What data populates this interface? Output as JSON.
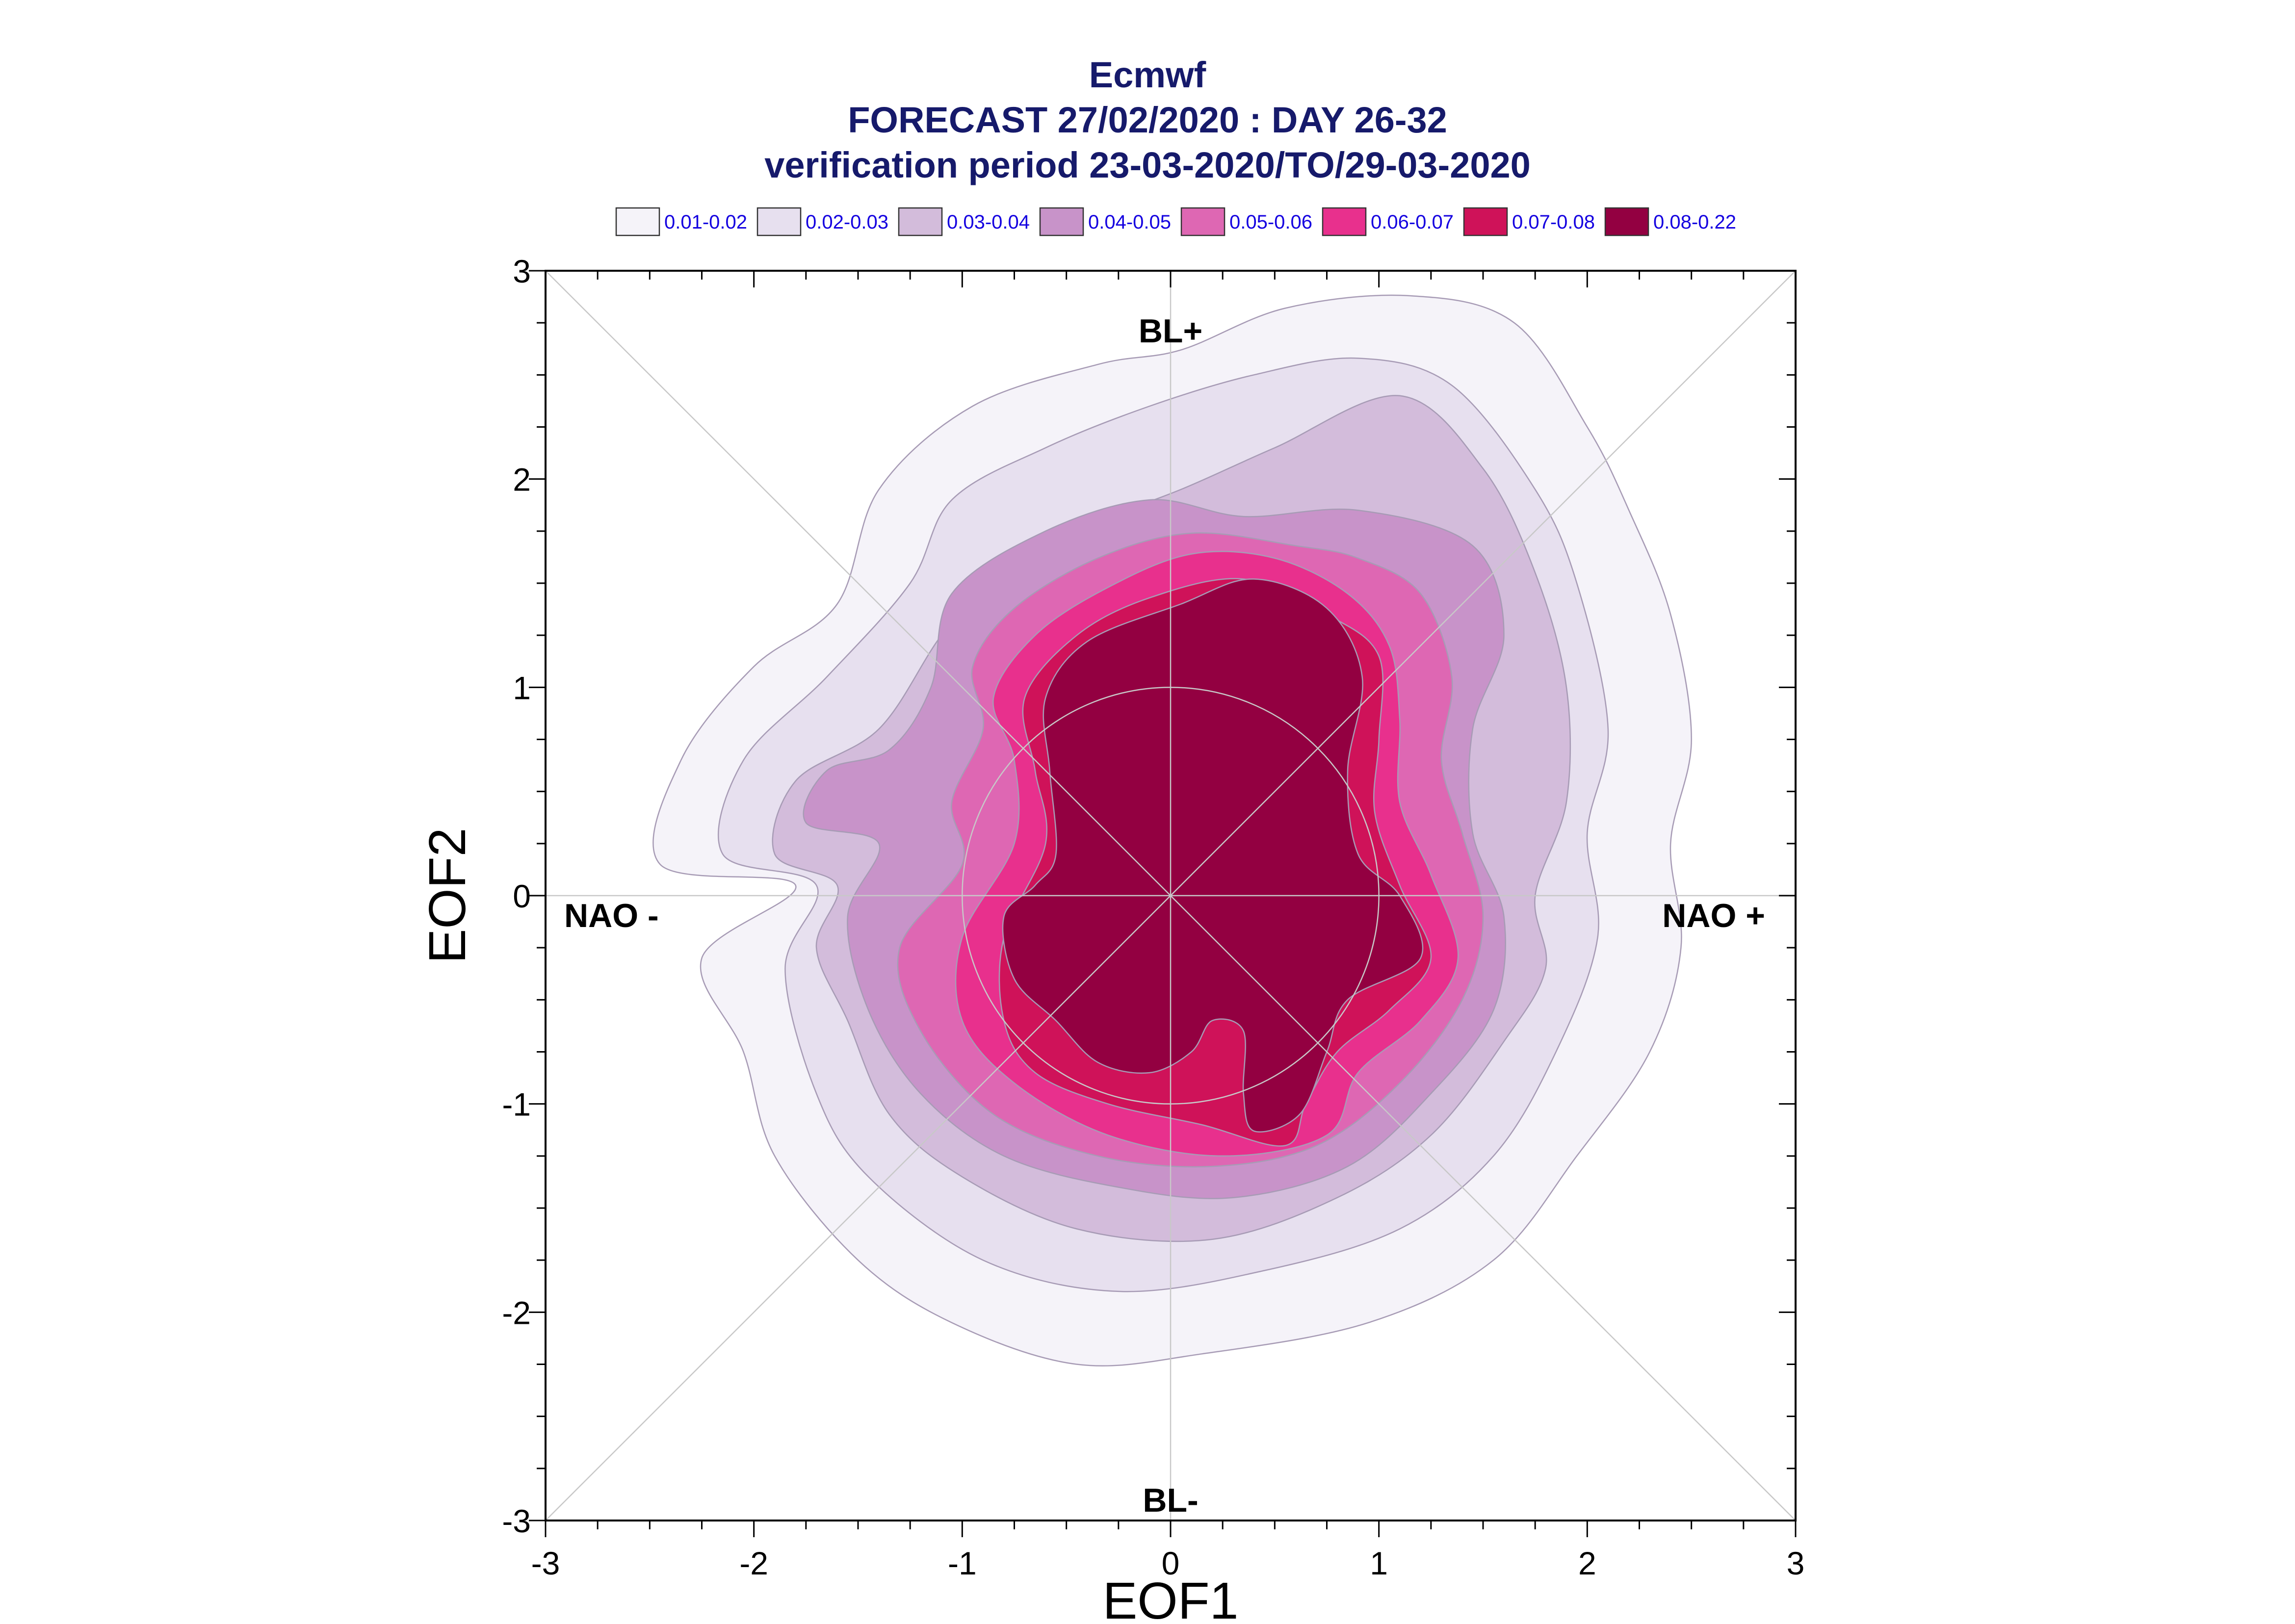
{
  "chart_data": {
    "type": "contour",
    "title_lines": [
      "Ecmwf",
      "FORECAST 27/02/2020 : DAY 26-32",
      "verification period 23-03-2020/TO/29-03-2020"
    ],
    "xlabel": "EOF1",
    "ylabel": "EOF2",
    "xlim": [
      -3,
      3
    ],
    "ylim": [
      -3,
      3
    ],
    "xticks": [
      "-3",
      "-2",
      "-1",
      "0",
      "1",
      "2",
      "3"
    ],
    "yticks": [
      "-3",
      "-2",
      "-1",
      "0",
      "1",
      "2",
      "3"
    ],
    "regime_labels": {
      "top": "BL+",
      "bottom": "BL-",
      "left": "NAO -",
      "right": "NAO +"
    },
    "reference_circle_radius": 1,
    "legend": [
      {
        "label": "0.01-0.02",
        "color": "#f5f3f9"
      },
      {
        "label": "0.02-0.03",
        "color": "#e7e0ef"
      },
      {
        "label": "0.03-0.04",
        "color": "#d3bcdb"
      },
      {
        "label": "0.04-0.05",
        "color": "#c893c9"
      },
      {
        "label": "0.05-0.06",
        "color": "#de67b3"
      },
      {
        "label": "0.06-0.07",
        "color": "#e8308d"
      },
      {
        "label": "0.07-0.08",
        "color": "#cf1259"
      },
      {
        "label": "0.08-0.22",
        "color": "#930041"
      }
    ],
    "contours": [
      {
        "level": "0.01-0.02",
        "points": [
          [
            -1.8,
            0.05
          ],
          [
            -2.45,
            0.15
          ],
          [
            -2.35,
            0.65
          ],
          [
            -2.0,
            1.1
          ],
          [
            -1.6,
            1.4
          ],
          [
            -1.4,
            1.95
          ],
          [
            -0.95,
            2.35
          ],
          [
            -0.35,
            2.55
          ],
          [
            0.05,
            2.62
          ],
          [
            0.55,
            2.82
          ],
          [
            1.15,
            2.88
          ],
          [
            1.65,
            2.75
          ],
          [
            2.0,
            2.25
          ],
          [
            2.2,
            1.85
          ],
          [
            2.4,
            1.35
          ],
          [
            2.5,
            0.75
          ],
          [
            2.4,
            0.25
          ],
          [
            2.45,
            -0.25
          ],
          [
            2.3,
            -0.75
          ],
          [
            1.95,
            -1.25
          ],
          [
            1.55,
            -1.75
          ],
          [
            0.95,
            -2.05
          ],
          [
            0.15,
            -2.2
          ],
          [
            -0.45,
            -2.25
          ],
          [
            -1.05,
            -2.05
          ],
          [
            -1.5,
            -1.75
          ],
          [
            -1.9,
            -1.25
          ],
          [
            -2.05,
            -0.75
          ],
          [
            -2.25,
            -0.3
          ]
        ]
      },
      {
        "level": "0.02-0.03",
        "points": [
          [
            -1.7,
            0.05
          ],
          [
            -2.15,
            0.2
          ],
          [
            -2.05,
            0.65
          ],
          [
            -1.65,
            1.05
          ],
          [
            -1.25,
            1.5
          ],
          [
            -1.05,
            1.9
          ],
          [
            -0.6,
            2.15
          ],
          [
            -0.1,
            2.35
          ],
          [
            0.4,
            2.5
          ],
          [
            0.9,
            2.58
          ],
          [
            1.35,
            2.45
          ],
          [
            1.75,
            1.95
          ],
          [
            1.95,
            1.5
          ],
          [
            2.1,
            0.8
          ],
          [
            2.0,
            0.3
          ],
          [
            2.05,
            -0.2
          ],
          [
            1.85,
            -0.75
          ],
          [
            1.55,
            -1.25
          ],
          [
            1.1,
            -1.6
          ],
          [
            0.45,
            -1.8
          ],
          [
            -0.25,
            -1.9
          ],
          [
            -0.9,
            -1.75
          ],
          [
            -1.45,
            -1.35
          ],
          [
            -1.7,
            -0.95
          ],
          [
            -1.85,
            -0.35
          ]
        ]
      },
      {
        "level": "0.03-0.04",
        "points": [
          [
            -1.6,
            0.05
          ],
          [
            -1.9,
            0.2
          ],
          [
            -1.8,
            0.55
          ],
          [
            -1.4,
            0.8
          ],
          [
            -1.1,
            1.25
          ],
          [
            -0.8,
            1.6
          ],
          [
            -0.4,
            1.78
          ],
          [
            0.05,
            1.95
          ],
          [
            0.5,
            2.15
          ],
          [
            1.1,
            2.4
          ],
          [
            1.5,
            2.05
          ],
          [
            1.75,
            1.55
          ],
          [
            1.9,
            1.0
          ],
          [
            1.9,
            0.45
          ],
          [
            1.75,
            0.0
          ],
          [
            1.8,
            -0.35
          ],
          [
            1.6,
            -0.7
          ],
          [
            1.25,
            -1.15
          ],
          [
            0.8,
            -1.45
          ],
          [
            0.2,
            -1.65
          ],
          [
            -0.45,
            -1.6
          ],
          [
            -1.0,
            -1.35
          ],
          [
            -1.35,
            -1.05
          ],
          [
            -1.55,
            -0.6
          ],
          [
            -1.7,
            -0.25
          ]
        ]
      },
      {
        "level": "0.04-0.05",
        "points": [
          [
            -1.4,
            0.25
          ],
          [
            -1.75,
            0.35
          ],
          [
            -1.65,
            0.6
          ],
          [
            -1.35,
            0.7
          ],
          [
            -1.15,
            1.0
          ],
          [
            -1.05,
            1.45
          ],
          [
            -0.6,
            1.75
          ],
          [
            -0.1,
            1.9
          ],
          [
            0.35,
            1.82
          ],
          [
            0.9,
            1.85
          ],
          [
            1.45,
            1.68
          ],
          [
            1.6,
            1.25
          ],
          [
            1.45,
            0.8
          ],
          [
            1.45,
            0.3
          ],
          [
            1.6,
            -0.1
          ],
          [
            1.55,
            -0.55
          ],
          [
            1.25,
            -0.95
          ],
          [
            0.85,
            -1.3
          ],
          [
            0.3,
            -1.45
          ],
          [
            -0.25,
            -1.4
          ],
          [
            -0.8,
            -1.25
          ],
          [
            -1.2,
            -0.95
          ],
          [
            -1.45,
            -0.55
          ],
          [
            -1.55,
            -0.1
          ]
        ]
      },
      {
        "level": "0.05-0.06",
        "points": [
          [
            -1.0,
            0.15
          ],
          [
            -1.05,
            0.45
          ],
          [
            -0.9,
            0.8
          ],
          [
            -0.95,
            1.1
          ],
          [
            -0.75,
            1.38
          ],
          [
            -0.35,
            1.62
          ],
          [
            0.1,
            1.74
          ],
          [
            0.6,
            1.68
          ],
          [
            0.9,
            1.62
          ],
          [
            1.2,
            1.45
          ],
          [
            1.35,
            1.05
          ],
          [
            1.3,
            0.65
          ],
          [
            1.4,
            0.3
          ],
          [
            1.5,
            -0.1
          ],
          [
            1.4,
            -0.5
          ],
          [
            1.1,
            -0.9
          ],
          [
            0.7,
            -1.2
          ],
          [
            0.2,
            -1.3
          ],
          [
            -0.35,
            -1.25
          ],
          [
            -0.85,
            -1.05
          ],
          [
            -1.2,
            -0.65
          ],
          [
            -1.3,
            -0.25
          ]
        ]
      },
      {
        "level": "0.06-0.07",
        "points": [
          [
            -0.75,
            0.25
          ],
          [
            -0.75,
            0.65
          ],
          [
            -0.85,
            0.95
          ],
          [
            -0.65,
            1.25
          ],
          [
            -0.3,
            1.48
          ],
          [
            0.1,
            1.64
          ],
          [
            0.5,
            1.62
          ],
          [
            0.85,
            1.45
          ],
          [
            1.05,
            1.2
          ],
          [
            1.1,
            0.85
          ],
          [
            1.1,
            0.45
          ],
          [
            1.25,
            0.1
          ],
          [
            1.38,
            -0.3
          ],
          [
            1.2,
            -0.6
          ],
          [
            0.9,
            -0.85
          ],
          [
            0.75,
            -1.15
          ],
          [
            0.25,
            -1.25
          ],
          [
            -0.3,
            -1.15
          ],
          [
            -0.75,
            -0.9
          ],
          [
            -1.0,
            -0.6
          ],
          [
            -1.0,
            -0.2
          ]
        ]
      },
      {
        "level": "0.07-0.08",
        "points": [
          [
            -0.6,
            0.25
          ],
          [
            -0.65,
            0.6
          ],
          [
            -0.7,
            0.95
          ],
          [
            -0.45,
            1.25
          ],
          [
            -0.1,
            1.43
          ],
          [
            0.35,
            1.52
          ],
          [
            0.75,
            1.35
          ],
          [
            1.0,
            1.15
          ],
          [
            1.0,
            0.75
          ],
          [
            0.98,
            0.4
          ],
          [
            1.1,
            0.05
          ],
          [
            1.25,
            -0.3
          ],
          [
            1.05,
            -0.55
          ],
          [
            0.8,
            -0.75
          ],
          [
            0.65,
            -1.0
          ],
          [
            0.55,
            -1.2
          ],
          [
            0.15,
            -1.1
          ],
          [
            -0.3,
            -1.0
          ],
          [
            -0.65,
            -0.85
          ],
          [
            -0.8,
            -0.6
          ],
          [
            -0.8,
            -0.2
          ]
        ]
      },
      {
        "level": "0.08-0.22",
        "points": [
          [
            -0.55,
            0.2
          ],
          [
            -0.58,
            0.6
          ],
          [
            -0.6,
            0.95
          ],
          [
            -0.4,
            1.22
          ],
          [
            0.05,
            1.4
          ],
          [
            0.4,
            1.52
          ],
          [
            0.75,
            1.38
          ],
          [
            0.92,
            1.05
          ],
          [
            0.85,
            0.6
          ],
          [
            0.9,
            0.2
          ],
          [
            1.1,
            0.0
          ],
          [
            1.2,
            -0.3
          ],
          [
            0.85,
            -0.5
          ],
          [
            0.75,
            -0.75
          ],
          [
            0.62,
            -1.05
          ],
          [
            0.4,
            -1.13
          ],
          [
            0.35,
            -0.95
          ],
          [
            0.35,
            -0.65
          ],
          [
            0.2,
            -0.6
          ],
          [
            0.1,
            -0.75
          ],
          [
            -0.1,
            -0.85
          ],
          [
            -0.35,
            -0.8
          ],
          [
            -0.55,
            -0.6
          ],
          [
            -0.75,
            -0.4
          ],
          [
            -0.8,
            -0.1
          ],
          [
            -0.65,
            0.05
          ]
        ]
      }
    ]
  }
}
